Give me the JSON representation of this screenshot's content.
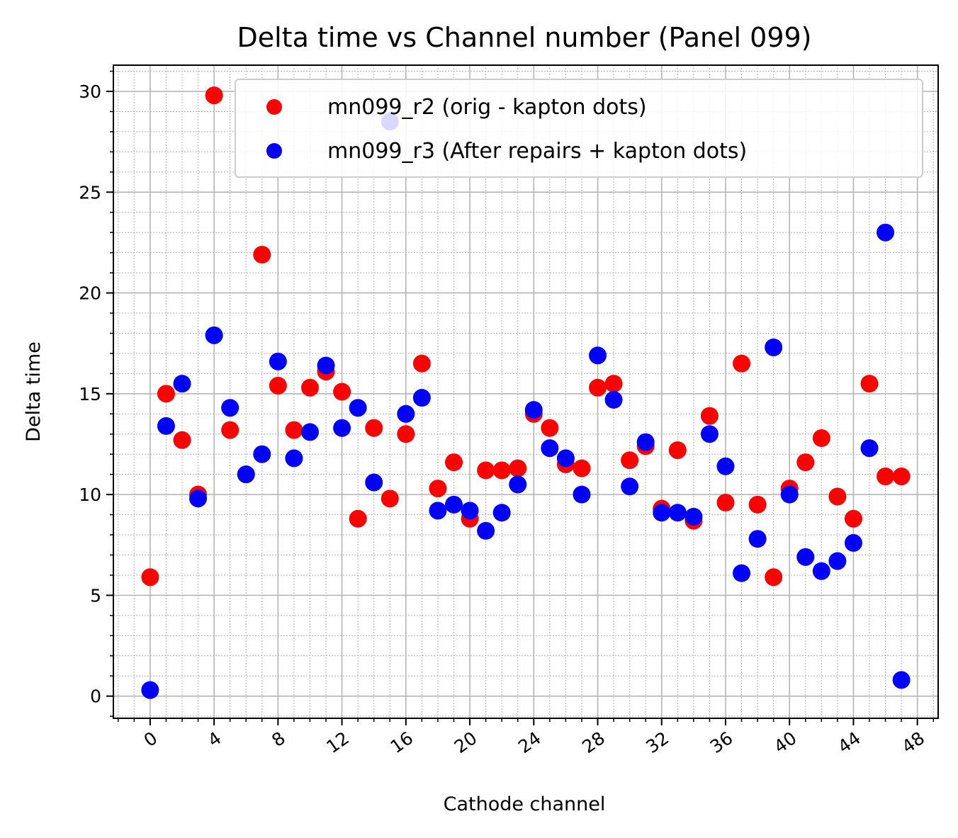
{
  "chart_data": {
    "type": "scatter",
    "title": "Delta time vs Channel number (Panel 099)",
    "xlabel": "Cathode channel",
    "ylabel": "Delta time",
    "xlim": [
      -2.3,
      49.3
    ],
    "ylim": [
      -1.1,
      31.3
    ],
    "xticks": [
      0,
      4,
      8,
      12,
      16,
      20,
      24,
      28,
      32,
      36,
      40,
      44,
      48
    ],
    "yticks": [
      0,
      5,
      10,
      15,
      20,
      25,
      30
    ],
    "grid": true,
    "legend_position": "top-right",
    "series": [
      {
        "name": "mn099_r2 (orig - kapton dots)",
        "color": "#ff0000",
        "x": [
          0,
          1,
          2,
          3,
          4,
          5,
          6,
          7,
          8,
          9,
          10,
          11,
          12,
          13,
          14,
          15,
          16,
          17,
          18,
          19,
          20,
          21,
          22,
          23,
          24,
          25,
          26,
          27,
          28,
          29,
          30,
          31,
          32,
          33,
          34,
          35,
          36,
          37,
          38,
          39,
          40,
          41,
          42,
          43,
          44,
          45,
          46,
          47
        ],
        "y": [
          5.9,
          15.0,
          12.7,
          10.0,
          29.8,
          13.2,
          11.0,
          21.9,
          15.4,
          13.2,
          15.3,
          16.1,
          15.1,
          8.8,
          13.3,
          9.8,
          13.0,
          16.5,
          10.3,
          11.6,
          8.8,
          11.2,
          11.2,
          11.3,
          14.0,
          13.3,
          11.5,
          11.3,
          15.3,
          15.5,
          11.7,
          12.4,
          9.3,
          12.2,
          8.7,
          13.9,
          9.6,
          16.5,
          9.5,
          5.9,
          10.3,
          11.6,
          12.8,
          9.9,
          8.8,
          15.5,
          10.9,
          10.9
        ]
      },
      {
        "name": "mn099_r3 (After repairs + kapton dots)",
        "color": "#0000ff",
        "x": [
          0,
          1,
          2,
          3,
          4,
          5,
          6,
          7,
          8,
          9,
          10,
          11,
          12,
          13,
          14,
          15,
          16,
          17,
          18,
          19,
          20,
          21,
          22,
          23,
          24,
          25,
          26,
          27,
          28,
          29,
          30,
          31,
          32,
          33,
          34,
          35,
          36,
          37,
          38,
          39,
          40,
          41,
          42,
          43,
          44,
          45,
          46,
          47
        ],
        "y": [
          0.3,
          13.4,
          15.5,
          9.8,
          17.9,
          14.3,
          11.0,
          12.0,
          16.6,
          11.8,
          13.1,
          16.4,
          13.3,
          14.3,
          10.6,
          28.5,
          14.0,
          14.8,
          9.2,
          9.5,
          9.2,
          8.2,
          9.1,
          10.5,
          14.2,
          12.3,
          11.8,
          10.0,
          16.9,
          14.7,
          10.4,
          12.6,
          9.1,
          9.1,
          8.9,
          13.0,
          11.4,
          6.1,
          7.8,
          17.3,
          10.0,
          6.9,
          6.2,
          6.7,
          7.6,
          12.3,
          23.0,
          0.8
        ]
      }
    ]
  }
}
